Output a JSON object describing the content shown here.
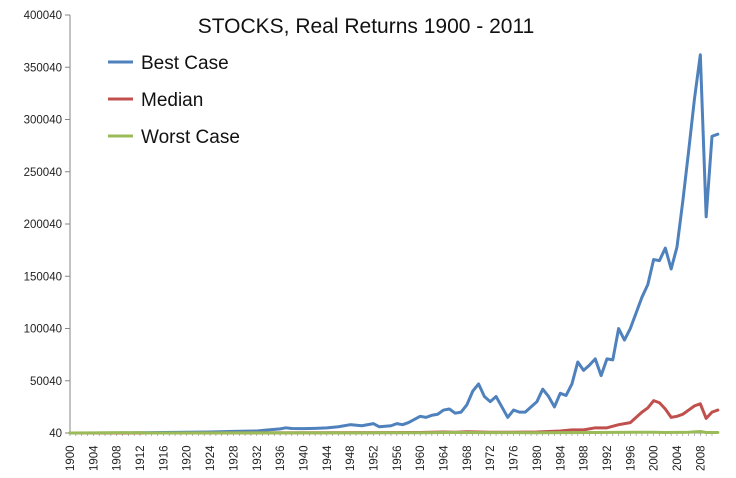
{
  "chart_data": {
    "type": "line",
    "title": "STOCKS, Real Returns 1900 - 2011",
    "xlabel": "",
    "ylabel": "",
    "xlim": [
      1900,
      2010
    ],
    "ylim": [
      40,
      400040
    ],
    "y_ticks": [
      40,
      50040,
      100040,
      150040,
      200040,
      250040,
      300040,
      350040,
      400040
    ],
    "x_tick_labels": [
      "1900",
      "1904",
      "1908",
      "1912",
      "1916",
      "1920",
      "1924",
      "1928",
      "1932",
      "1936",
      "1940",
      "1944",
      "1948",
      "1952",
      "1956",
      "1960",
      "1964",
      "1968",
      "1972",
      "1976",
      "1980",
      "1984",
      "1988",
      "1992",
      "1996",
      "2000",
      "2004",
      "2008"
    ],
    "grid": false,
    "legend": "top-left",
    "series": [
      {
        "name": "Best Case",
        "color": "#4F81BD",
        "points": [
          [
            1900,
            40
          ],
          [
            1904,
            80
          ],
          [
            1908,
            120
          ],
          [
            1912,
            250
          ],
          [
            1916,
            500
          ],
          [
            1920,
            700
          ],
          [
            1924,
            1000
          ],
          [
            1928,
            1600
          ],
          [
            1932,
            2000
          ],
          [
            1934,
            3000
          ],
          [
            1936,
            4000
          ],
          [
            1937,
            5000
          ],
          [
            1938,
            4300
          ],
          [
            1940,
            4200
          ],
          [
            1942,
            4500
          ],
          [
            1944,
            5000
          ],
          [
            1946,
            6000
          ],
          [
            1948,
            8000
          ],
          [
            1950,
            7000
          ],
          [
            1952,
            9000
          ],
          [
            1953,
            6000
          ],
          [
            1955,
            7000
          ],
          [
            1956,
            9000
          ],
          [
            1957,
            8000
          ],
          [
            1958,
            10000
          ],
          [
            1960,
            16000
          ],
          [
            1961,
            15000
          ],
          [
            1962,
            17000
          ],
          [
            1963,
            18000
          ],
          [
            1964,
            22000
          ],
          [
            1965,
            23000
          ],
          [
            1966,
            19000
          ],
          [
            1967,
            20000
          ],
          [
            1968,
            27000
          ],
          [
            1969,
            40000
          ],
          [
            1970,
            47000
          ],
          [
            1971,
            35000
          ],
          [
            1972,
            30000
          ],
          [
            1973,
            35000
          ],
          [
            1974,
            25000
          ],
          [
            1975,
            15000
          ],
          [
            1976,
            22000
          ],
          [
            1977,
            20000
          ],
          [
            1978,
            20000
          ],
          [
            1979,
            25000
          ],
          [
            1980,
            30000
          ],
          [
            1981,
            42000
          ],
          [
            1982,
            35000
          ],
          [
            1983,
            25000
          ],
          [
            1984,
            38000
          ],
          [
            1985,
            36000
          ],
          [
            1986,
            47000
          ],
          [
            1987,
            68000
          ],
          [
            1988,
            60000
          ],
          [
            1989,
            65000
          ],
          [
            1990,
            71000
          ],
          [
            1991,
            55000
          ],
          [
            1992,
            71000
          ],
          [
            1993,
            70000
          ],
          [
            1994,
            100000
          ],
          [
            1995,
            89000
          ],
          [
            1996,
            100000
          ],
          [
            1997,
            115000
          ],
          [
            1998,
            130000
          ],
          [
            1999,
            142000
          ],
          [
            2000,
            166000
          ],
          [
            2001,
            165000
          ],
          [
            2002,
            177000
          ],
          [
            2003,
            157000
          ],
          [
            2004,
            178000
          ],
          [
            2005,
            222000
          ],
          [
            2006,
            270000
          ],
          [
            2007,
            320000
          ],
          [
            2008,
            362000
          ],
          [
            2009,
            207000
          ],
          [
            2010,
            284000
          ],
          [
            2011,
            286000
          ]
        ]
      },
      {
        "name": "Median",
        "color": "#C0504D",
        "points": [
          [
            1900,
            40
          ],
          [
            1920,
            100
          ],
          [
            1940,
            300
          ],
          [
            1960,
            500
          ],
          [
            1964,
            1000
          ],
          [
            1966,
            800
          ],
          [
            1968,
            1200
          ],
          [
            1970,
            1000
          ],
          [
            1972,
            800
          ],
          [
            1975,
            700
          ],
          [
            1978,
            900
          ],
          [
            1980,
            1000
          ],
          [
            1984,
            2000
          ],
          [
            1986,
            3000
          ],
          [
            1988,
            3000
          ],
          [
            1990,
            5000
          ],
          [
            1992,
            5000
          ],
          [
            1994,
            8000
          ],
          [
            1996,
            10000
          ],
          [
            1998,
            20000
          ],
          [
            1999,
            24000
          ],
          [
            2000,
            31000
          ],
          [
            2001,
            29000
          ],
          [
            2002,
            23000
          ],
          [
            2003,
            15000
          ],
          [
            2004,
            16000
          ],
          [
            2005,
            18000
          ],
          [
            2006,
            22000
          ],
          [
            2007,
            26000
          ],
          [
            2008,
            28000
          ],
          [
            2009,
            14000
          ],
          [
            2010,
            20000
          ],
          [
            2011,
            22000
          ]
        ]
      },
      {
        "name": "Worst Case",
        "color": "#9BBB59",
        "points": [
          [
            1900,
            40
          ],
          [
            1912,
            400
          ],
          [
            1913,
            40
          ],
          [
            1950,
            200
          ],
          [
            1960,
            300
          ],
          [
            1966,
            500
          ],
          [
            1970,
            400
          ],
          [
            1980,
            300
          ],
          [
            1990,
            500
          ],
          [
            2000,
            800
          ],
          [
            2002,
            500
          ],
          [
            2006,
            800
          ],
          [
            2008,
            1500
          ],
          [
            2009,
            500
          ],
          [
            2011,
            500
          ]
        ]
      }
    ]
  }
}
